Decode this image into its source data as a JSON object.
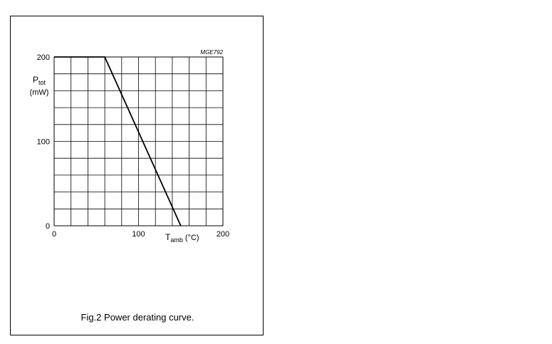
{
  "figure": {
    "code": "MGE792",
    "caption": "Fig.2  Power derating curve."
  },
  "chart_data": {
    "type": "line",
    "title": "",
    "ylabel": "P",
    "ylabel_sub": "tot",
    "ylabel_unit": "(mW)",
    "xlabel": "T",
    "xlabel_sub": "amb",
    "xlabel_unit": " (°C)",
    "xlim": [
      0,
      200
    ],
    "ylim": [
      0,
      200
    ],
    "x_ticks": [
      0,
      100,
      200
    ],
    "y_ticks": [
      0,
      100,
      200
    ],
    "grid": true,
    "grid_divisions_x": 10,
    "grid_divisions_y": 10,
    "series": [
      {
        "x": [
          0,
          60,
          150
        ],
        "y": [
          200,
          200,
          0
        ]
      }
    ]
  }
}
